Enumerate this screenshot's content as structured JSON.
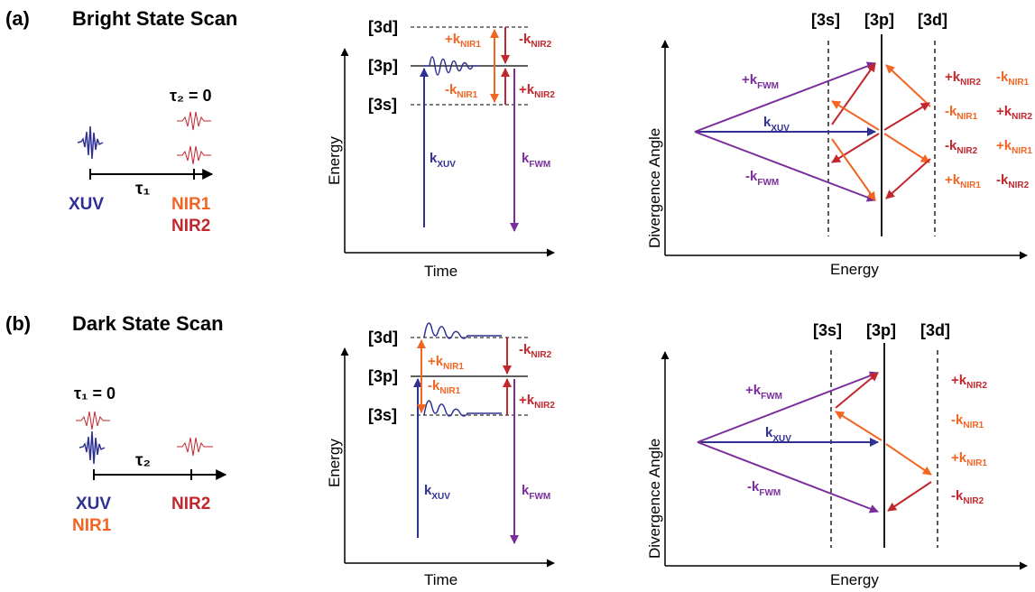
{
  "colors": {
    "xuv": "#2e3192",
    "fwm": "#7b2d9b",
    "nir1": "#f26522",
    "nir2": "#c1272d",
    "black": "#000000"
  },
  "panels": [
    {
      "label": "(a)",
      "title": "Bright State Scan",
      "pulse": {
        "tau_fixed": "τ₂ = 0",
        "tau_axis": "τ₁",
        "left_labels": [
          "XUV"
        ],
        "right_labels": [
          "NIR1",
          "NIR2"
        ]
      },
      "energy_diagram": {
        "ylabel": "Energy",
        "xlabel": "Time",
        "levels": [
          "[3d]",
          "[3p]",
          "[3s]"
        ]
      },
      "k_diagram": {
        "ylabel": "Divergence Angle",
        "xlabel": "Energy",
        "columns": [
          "[3s]",
          "[3p]",
          "[3d]"
        ]
      }
    },
    {
      "label": "(b)",
      "title": "Dark State Scan",
      "pulse": {
        "tau_fixed": "τ₁ = 0",
        "tau_axis": "τ₂",
        "left_labels": [
          "XUV",
          "NIR1"
        ],
        "right_labels": [
          "NIR2"
        ]
      },
      "energy_diagram": {
        "ylabel": "Energy",
        "xlabel": "Time",
        "levels": [
          "[3d]",
          "[3p]",
          "[3s]"
        ]
      },
      "k_diagram": {
        "ylabel": "Divergence Angle",
        "xlabel": "Energy",
        "columns": [
          "[3s]",
          "[3p]",
          "[3d]"
        ]
      }
    }
  ],
  "k_labels": {
    "plus": "+k",
    "minus": "-k",
    "xuv": "k",
    "sub_xuv": "XUV",
    "sub_fwm": "FWM",
    "sub_nir1": "NIR1",
    "sub_nir2": "NIR2"
  }
}
